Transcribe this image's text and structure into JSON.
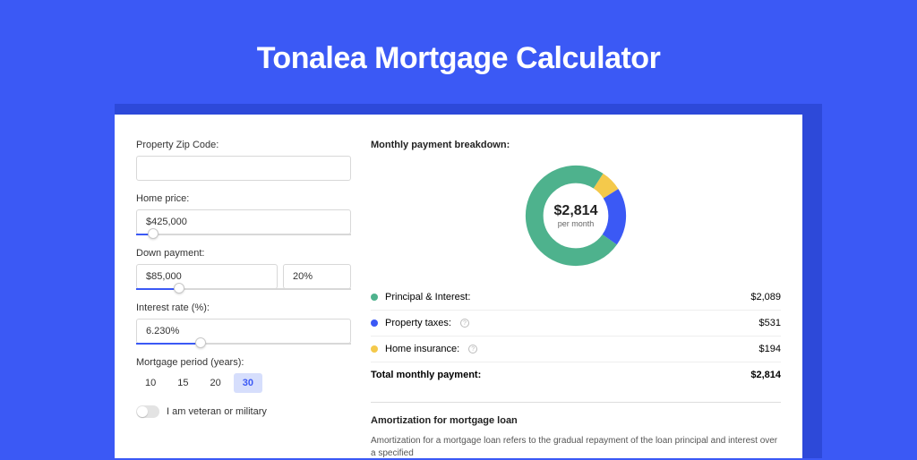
{
  "page": {
    "title": "Tonalea Mortgage Calculator",
    "bg_color": "#3b59f5",
    "shadow_color": "#2d49d9",
    "card_bg": "#ffffff"
  },
  "form": {
    "zip": {
      "label": "Property Zip Code:",
      "value": ""
    },
    "home_price": {
      "label": "Home price:",
      "value": "$425,000",
      "slider_pct": 8
    },
    "down_payment": {
      "label": "Down payment:",
      "amount": "$85,000",
      "pct": "20%",
      "slider_pct": 20
    },
    "interest_rate": {
      "label": "Interest rate (%):",
      "value": "6.230%",
      "slider_pct": 30
    },
    "period": {
      "label": "Mortgage period (years):",
      "options": [
        "10",
        "15",
        "20",
        "30"
      ],
      "selected": "30"
    },
    "veteran": {
      "label": "I am veteran or military",
      "on": false
    }
  },
  "breakdown": {
    "title": "Monthly payment breakdown:",
    "donut": {
      "amount": "$2,814",
      "sub": "per month",
      "slices": [
        {
          "key": "pi",
          "label": "Principal & Interest:",
          "value": "$2,089",
          "pct": 74.24,
          "color": "#4eb28d"
        },
        {
          "key": "tax",
          "label": "Property taxes:",
          "value": "$531",
          "pct": 18.87,
          "color": "#3b59f5",
          "help": true
        },
        {
          "key": "ins",
          "label": "Home insurance:",
          "value": "$194",
          "pct": 6.89,
          "color": "#f4c94b",
          "help": true
        }
      ]
    },
    "total": {
      "label": "Total monthly payment:",
      "value": "$2,814"
    }
  },
  "amort": {
    "title": "Amortization for mortgage loan",
    "body": "Amortization for a mortgage loan refers to the gradual repayment of the loan principal and interest over a specified"
  }
}
